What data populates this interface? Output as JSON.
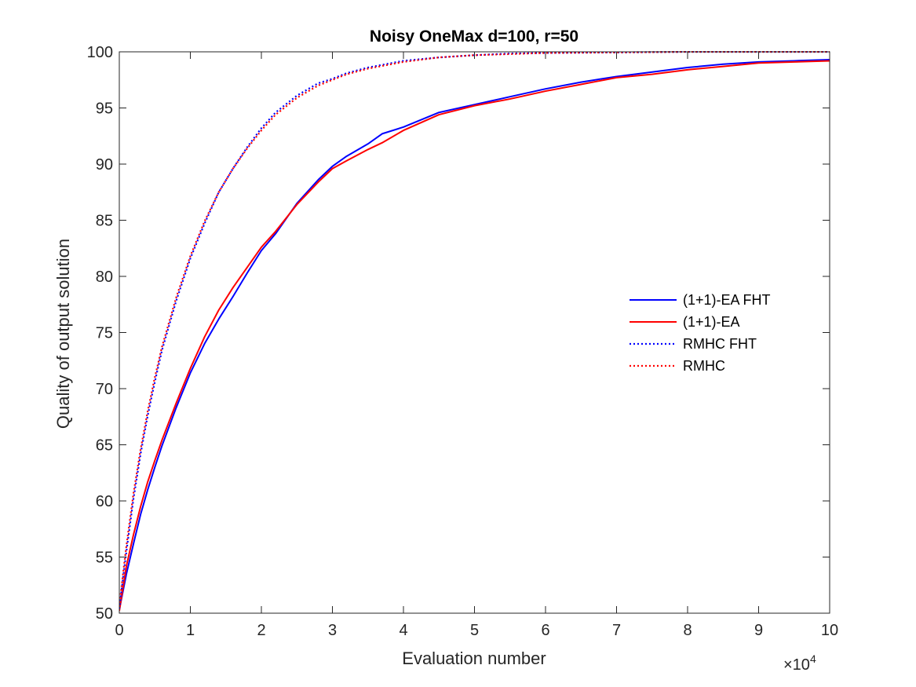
{
  "chart_data": {
    "type": "line",
    "title": "Noisy OneMax d=100, r=50",
    "xlabel": "Evaluation number",
    "ylabel": "Quality of output solution",
    "x_exponent": "×10",
    "x_exponent_power": "4",
    "xlim": [
      0,
      100000
    ],
    "ylim": [
      50,
      100
    ],
    "xticks": [
      0,
      1,
      2,
      3,
      4,
      5,
      6,
      7,
      8,
      9,
      10
    ],
    "yticks": [
      50,
      55,
      60,
      65,
      70,
      75,
      80,
      85,
      90,
      95,
      100
    ],
    "x_tick_scale": 10000,
    "grid": false,
    "box": true,
    "legend_position": "right",
    "series": [
      {
        "name": "(1+1)-EA FHT",
        "color": "#0000ff",
        "style": "solid",
        "x": [
          0,
          1000,
          2000,
          3000,
          4000,
          5000,
          6000,
          8000,
          10000,
          12000,
          14000,
          16000,
          18000,
          20000,
          22000,
          25000,
          28000,
          30000,
          32000,
          35000,
          37000,
          40000,
          45000,
          50000,
          55000,
          60000,
          65000,
          70000,
          75000,
          80000,
          85000,
          90000,
          95000,
          100000
        ],
        "values": [
          50.3,
          53.5,
          56.2,
          58.8,
          61.0,
          63.0,
          64.9,
          68.3,
          71.4,
          74.0,
          76.2,
          78.2,
          80.3,
          82.3,
          83.8,
          86.5,
          88.6,
          89.8,
          90.7,
          91.8,
          92.7,
          93.3,
          94.6,
          95.3,
          96.0,
          96.7,
          97.3,
          97.8,
          98.2,
          98.6,
          98.9,
          99.1,
          99.2,
          99.3
        ]
      },
      {
        "name": "(1+1)-EA",
        "color": "#ff0000",
        "style": "solid",
        "x": [
          0,
          1000,
          2000,
          3000,
          4000,
          5000,
          6000,
          8000,
          10000,
          12000,
          14000,
          16000,
          18000,
          20000,
          22000,
          25000,
          28000,
          30000,
          32000,
          35000,
          37000,
          40000,
          45000,
          50000,
          55000,
          60000,
          65000,
          70000,
          75000,
          80000,
          85000,
          90000,
          95000,
          100000
        ],
        "values": [
          50.2,
          54.2,
          57.0,
          59.5,
          61.7,
          63.6,
          65.4,
          68.7,
          71.8,
          74.6,
          77.0,
          79.0,
          80.8,
          82.6,
          84.0,
          86.4,
          88.4,
          89.6,
          90.3,
          91.3,
          91.9,
          93.0,
          94.4,
          95.2,
          95.8,
          96.5,
          97.1,
          97.7,
          98.0,
          98.4,
          98.7,
          99.0,
          99.1,
          99.2
        ]
      },
      {
        "name": "RMHC FHT",
        "color": "#0000ff",
        "style": "dotted",
        "x": [
          0,
          500,
          1000,
          2000,
          3000,
          4000,
          5000,
          6000,
          8000,
          10000,
          12000,
          14000,
          16000,
          18000,
          20000,
          22000,
          25000,
          28000,
          30000,
          32000,
          35000,
          40000,
          45000,
          50000,
          55000,
          60000,
          70000,
          80000,
          90000,
          100000
        ],
        "values": [
          50.4,
          53.0,
          55.5,
          60.2,
          64.2,
          67.6,
          70.6,
          73.4,
          77.8,
          81.6,
          84.7,
          87.5,
          89.6,
          91.5,
          93.2,
          94.6,
          96.1,
          97.2,
          97.6,
          98.1,
          98.6,
          99.2,
          99.5,
          99.7,
          99.85,
          99.9,
          99.95,
          100,
          100,
          100
        ]
      },
      {
        "name": "RMHC",
        "color": "#ff0000",
        "style": "dotted",
        "x": [
          0,
          500,
          1000,
          2000,
          3000,
          4000,
          5000,
          6000,
          8000,
          10000,
          12000,
          14000,
          16000,
          18000,
          20000,
          22000,
          25000,
          28000,
          30000,
          32000,
          35000,
          40000,
          45000,
          50000,
          55000,
          60000,
          70000,
          80000,
          90000,
          100000
        ],
        "values": [
          50.6,
          53.4,
          56.0,
          60.7,
          64.6,
          68.0,
          71.0,
          73.7,
          78.1,
          81.8,
          84.9,
          87.5,
          89.6,
          91.4,
          93.0,
          94.4,
          95.9,
          97.0,
          97.5,
          98.0,
          98.5,
          99.1,
          99.5,
          99.7,
          99.8,
          99.9,
          99.95,
          100,
          100,
          100
        ]
      }
    ]
  }
}
